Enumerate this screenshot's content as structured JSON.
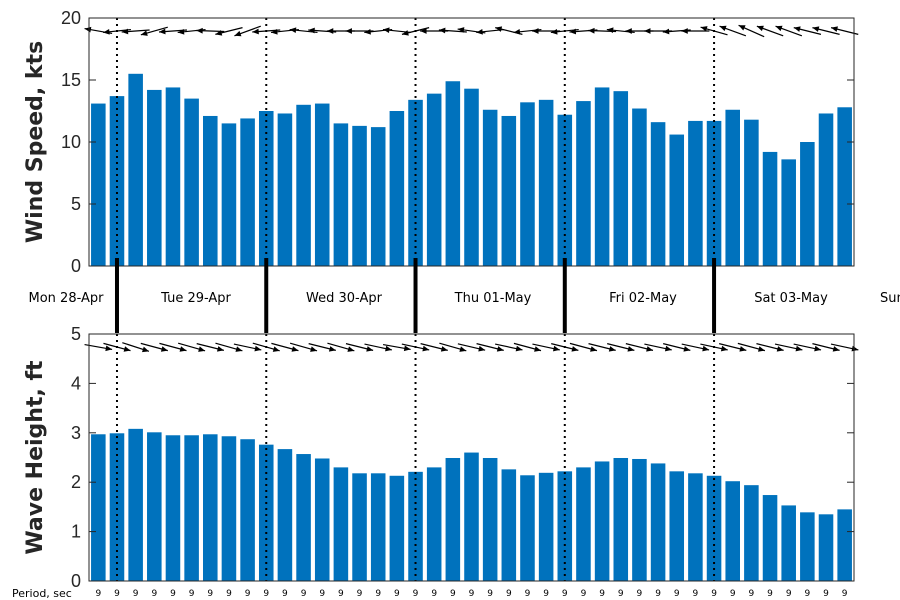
{
  "chart_data": [
    {
      "type": "bar",
      "ylabel": "Wind Speed, kts",
      "ylim": [
        0,
        20
      ],
      "yticks": [
        0,
        5,
        10,
        15,
        20
      ],
      "color": "#0072BD",
      "values": [
        13.1,
        13.7,
        15.5,
        14.2,
        14.4,
        13.5,
        12.1,
        11.5,
        11.9,
        12.5,
        12.3,
        13.0,
        13.1,
        11.5,
        11.3,
        11.2,
        12.5,
        13.4,
        13.9,
        14.9,
        14.3,
        12.6,
        12.1,
        13.2,
        13.4,
        12.2,
        13.3,
        14.4,
        14.1,
        12.7,
        11.6,
        10.6,
        11.7,
        11.7,
        12.6,
        11.8,
        9.2,
        8.6,
        10.0,
        12.3,
        12.8
      ],
      "direction_arrows": [
        170,
        186,
        184,
        196,
        184,
        186,
        178,
        194,
        200,
        184,
        186,
        174,
        176,
        180,
        180,
        186,
        174,
        194,
        180,
        176,
        172,
        186,
        166,
        186,
        180,
        186,
        184,
        178,
        174,
        180,
        180,
        184,
        180,
        164,
        160,
        156,
        160,
        160,
        166,
        166,
        166
      ],
      "grid": false
    },
    {
      "type": "bar",
      "ylabel": "Wave Height, ft",
      "ylim": [
        0,
        5
      ],
      "yticks": [
        0,
        1,
        2,
        3,
        4,
        5
      ],
      "color": "#0072BD",
      "values": [
        2.97,
        2.99,
        3.08,
        3.01,
        2.95,
        2.95,
        2.97,
        2.93,
        2.87,
        2.76,
        2.67,
        2.57,
        2.48,
        2.3,
        2.18,
        2.18,
        2.13,
        2.21,
        2.3,
        2.49,
        2.6,
        2.49,
        2.26,
        2.14,
        2.19,
        2.22,
        2.3,
        2.42,
        2.49,
        2.47,
        2.38,
        2.22,
        2.18,
        2.13,
        2.02,
        1.94,
        1.74,
        1.53,
        1.39,
        1.35,
        1.45
      ],
      "direction_arrows": [
        -10,
        -15,
        -18,
        -15,
        -15,
        -16,
        -14,
        -16,
        -12,
        -16,
        -15,
        -16,
        -14,
        -16,
        -14,
        -12,
        -10,
        -12,
        -14,
        -16,
        -13,
        -14,
        -12,
        -15,
        -12,
        -14,
        -15,
        -14,
        -14,
        -14,
        -12,
        -14,
        -12,
        -12,
        -14,
        -15,
        -14,
        -12,
        -12,
        -14,
        -12
      ],
      "grid": false
    }
  ],
  "days": [
    "Mon 28-Apr",
    "Tue 29-Apr",
    "Wed 30-Apr",
    "Thu 01-May",
    "Fri 02-May",
    "Sat 03-May",
    "Sun"
  ],
  "period": {
    "title": "Period, sec",
    "values": [
      "9",
      "9",
      "9",
      "9",
      "9",
      "9",
      "9",
      "9",
      "9",
      "9",
      "9",
      "9",
      "9",
      "9",
      "9",
      "9",
      "9",
      "9",
      "9",
      "9",
      "9",
      "9",
      "9",
      "9",
      "9",
      "9",
      "9",
      "9",
      "9",
      "9",
      "9",
      "9",
      "9",
      "9",
      "9",
      "9",
      "9",
      "9",
      "9",
      "9",
      "9"
    ]
  }
}
